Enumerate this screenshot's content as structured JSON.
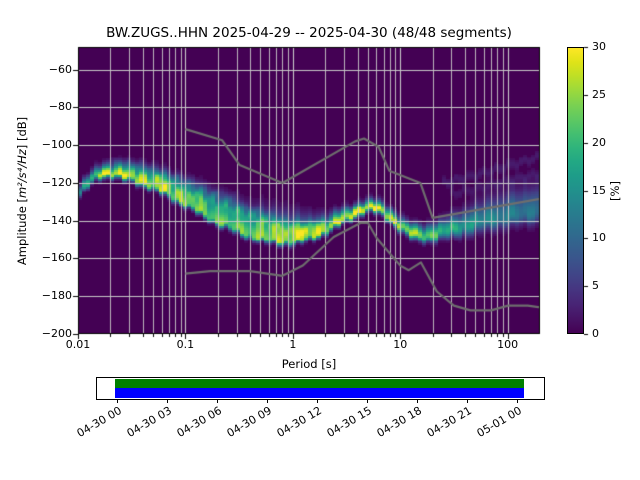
{
  "title": "BW.ZUGS..HHN   2025-04-29 -- 2025-04-30  (48/48 segments)",
  "chart_data": [
    {
      "type": "heatmap",
      "title": "BW.ZUGS..HHN   2025-04-29 -- 2025-04-30  (48/48 segments)",
      "xlabel": "Period [s]",
      "ylabel": {
        "prefix": "Amplitude [",
        "math": "m²/s⁴/Hz",
        "suffix": "] [dB]"
      },
      "xscale": "log",
      "xlim": [
        0.01,
        200
      ],
      "ylim": [
        -200,
        -48
      ],
      "xticks": [
        0.01,
        0.1,
        1,
        10,
        100
      ],
      "xtick_labels": [
        "0.01",
        "0.1",
        "1",
        "10",
        "100"
      ],
      "yticks": [
        -60,
        -80,
        -100,
        -120,
        -140,
        -160,
        -180,
        -200
      ],
      "ytick_labels": [
        "−60",
        "−80",
        "−100",
        "−120",
        "−140",
        "−160",
        "−180",
        "−200"
      ],
      "grid": true,
      "background_color": "#440154",
      "grid_color": "#c9c9c9",
      "noise_model_color": "#6e6e6e",
      "colorbar": {
        "label": "[%]",
        "range": [
          0,
          30
        ],
        "ticks": [
          0,
          5,
          10,
          15,
          20,
          25,
          30
        ],
        "tick_labels": [
          "0",
          "5",
          "10",
          "15",
          "20",
          "25",
          "30"
        ]
      },
      "mode_curve": [
        [
          0.01,
          -126.5
        ],
        [
          0.0112,
          -123.0
        ],
        [
          0.0126,
          -120.0
        ],
        [
          0.0141,
          -117.2
        ],
        [
          0.0158,
          -115.5
        ],
        [
          0.0178,
          -114.8
        ],
        [
          0.02,
          -114.8
        ],
        [
          0.0224,
          -115.2
        ],
        [
          0.0282,
          -116.5
        ],
        [
          0.0355,
          -118.2
        ],
        [
          0.0447,
          -120.3
        ],
        [
          0.0562,
          -122.8
        ],
        [
          0.0708,
          -125.8
        ],
        [
          0.0891,
          -128.8
        ],
        [
          0.1122,
          -132.0
        ],
        [
          0.1413,
          -135.3
        ],
        [
          0.1778,
          -138.4
        ],
        [
          0.2239,
          -141.4
        ],
        [
          0.2818,
          -144.0
        ],
        [
          0.3548,
          -146.3
        ],
        [
          0.4467,
          -148.1
        ],
        [
          0.5623,
          -149.4
        ],
        [
          0.7079,
          -150.3
        ],
        [
          0.8913,
          -150.6
        ],
        [
          1.122,
          -150.0
        ],
        [
          1.413,
          -148.5
        ],
        [
          1.778,
          -146.2
        ],
        [
          2.239,
          -143.3
        ],
        [
          2.818,
          -140.0
        ],
        [
          3.548,
          -136.8
        ],
        [
          4.467,
          -134.0
        ],
        [
          5.623,
          -133.0
        ],
        [
          7.079,
          -135.5
        ],
        [
          8.913,
          -140.5
        ],
        [
          11.22,
          -145.0
        ],
        [
          14.13,
          -147.8
        ],
        [
          17.78,
          -148.0
        ],
        [
          22.39,
          -146.8
        ],
        [
          28.18,
          -145.2
        ],
        [
          35.48,
          -143.8
        ],
        [
          44.67,
          -142.3
        ],
        [
          56.23,
          -140.9
        ],
        [
          70.79,
          -139.6
        ],
        [
          89.13,
          -138.4
        ],
        [
          112.2,
          -137.2
        ],
        [
          141.3,
          -136.2
        ],
        [
          177.8,
          -135.3
        ],
        [
          200.0,
          -134.8
        ]
      ],
      "mode_amplitude_pct": [
        [
          0.01,
          13
        ],
        [
          0.014,
          22
        ],
        [
          0.018,
          30
        ],
        [
          0.028,
          28
        ],
        [
          0.045,
          26
        ],
        [
          0.07,
          25
        ],
        [
          0.11,
          24
        ],
        [
          0.18,
          23
        ],
        [
          0.28,
          23
        ],
        [
          0.45,
          24
        ],
        [
          0.7,
          26
        ],
        [
          1.1,
          25
        ],
        [
          1.8,
          26
        ],
        [
          2.8,
          28
        ],
        [
          4.5,
          30
        ],
        [
          5.6,
          30
        ],
        [
          7.1,
          28
        ],
        [
          9,
          27
        ],
        [
          11,
          26
        ],
        [
          14,
          25
        ],
        [
          18,
          23
        ],
        [
          28,
          19
        ],
        [
          45,
          16
        ],
        [
          70,
          14
        ],
        [
          110,
          12.5
        ],
        [
          200,
          11
        ]
      ],
      "sigma_low": [
        [
          0.01,
          1.6
        ],
        [
          8,
          1.6
        ],
        [
          20,
          2.2
        ],
        [
          50,
          3.2
        ],
        [
          200,
          4.2
        ]
      ],
      "sigma_high": [
        [
          0.01,
          2.5
        ],
        [
          0.02,
          3.0
        ],
        [
          0.04,
          4.5
        ],
        [
          0.07,
          5.5
        ],
        [
          0.12,
          6.5
        ],
        [
          0.25,
          7.5
        ],
        [
          0.5,
          8.0
        ],
        [
          0.9,
          8.0
        ],
        [
          1.4,
          6.0
        ],
        [
          2.2,
          4.0
        ],
        [
          3.5,
          2.8
        ],
        [
          5.6,
          2.5
        ],
        [
          8,
          3.0
        ],
        [
          14,
          3.2
        ],
        [
          25,
          4.0
        ],
        [
          50,
          6.0
        ],
        [
          100,
          7.5
        ],
        [
          200,
          8.5
        ]
      ],
      "branches": [
        {
          "amp": 4.0,
          "points": [
            [
              0.03,
              -112.5
            ],
            [
              0.06,
              -116.5
            ],
            [
              0.1,
              -121.0
            ],
            [
              0.2,
              -128.0
            ],
            [
              0.4,
              -135.0
            ],
            [
              0.8,
              -141.0
            ],
            [
              1.3,
              -144.0
            ],
            [
              2.0,
              -141.5
            ]
          ]
        },
        {
          "amp": 5.5,
          "points": [
            [
              0.05,
              -117.0
            ],
            [
              0.1,
              -125.0
            ],
            [
              0.25,
              -133.5
            ],
            [
              0.5,
              -140.0
            ],
            [
              0.9,
              -145.5
            ],
            [
              1.4,
              -146.5
            ]
          ]
        },
        {
          "amp": 2.4,
          "points": [
            [
              0.02,
              -109.5
            ],
            [
              0.04,
              -111.5
            ],
            [
              0.08,
              -116.5
            ],
            [
              0.15,
              -122.5
            ],
            [
              0.3,
              -129.5
            ]
          ]
        },
        {
          "amp": 2.2,
          "points": [
            [
              25,
              -120.0
            ],
            [
              50,
              -116.0
            ],
            [
              100,
              -111.0
            ],
            [
              200,
              -106.0
            ]
          ]
        },
        {
          "amp": 1.8,
          "points": [
            [
              30,
              -126.0
            ],
            [
              70,
              -121.0
            ],
            [
              200,
              -115.0
            ]
          ]
        }
      ],
      "noise_models": {
        "nhnm": [
          [
            0.1,
            -91.5
          ],
          [
            0.22,
            -97.4
          ],
          [
            0.32,
            -110.5
          ],
          [
            0.8,
            -120.0
          ],
          [
            3.8,
            -98.0
          ],
          [
            4.6,
            -96.5
          ],
          [
            6.3,
            -101.0
          ],
          [
            7.9,
            -113.5
          ],
          [
            15.4,
            -120.0
          ],
          [
            20.0,
            -138.5
          ],
          [
            354.8,
            -126.0
          ]
        ],
        "nlnm": [
          [
            0.1,
            -168.0
          ],
          [
            0.17,
            -166.7
          ],
          [
            0.4,
            -166.7
          ],
          [
            0.8,
            -169.2
          ],
          [
            1.24,
            -163.7
          ],
          [
            2.4,
            -148.6
          ],
          [
            4.3,
            -141.1
          ],
          [
            5.0,
            -141.1
          ],
          [
            6.0,
            -149.0
          ],
          [
            10.0,
            -163.8
          ],
          [
            12.0,
            -166.2
          ],
          [
            15.6,
            -162.1
          ],
          [
            21.9,
            -177.5
          ],
          [
            31.6,
            -185.0
          ],
          [
            45.0,
            -187.5
          ],
          [
            70.0,
            -187.5
          ],
          [
            101.0,
            -185.0
          ],
          [
            154.0,
            -185.0
          ],
          [
            328.0,
            -187.5
          ]
        ]
      },
      "viridis_stops": [
        [
          0.0,
          "#440154"
        ],
        [
          0.05,
          "#471365"
        ],
        [
          0.1,
          "#482475"
        ],
        [
          0.15,
          "#463480"
        ],
        [
          0.2,
          "#414487"
        ],
        [
          0.25,
          "#3b528b"
        ],
        [
          0.3,
          "#355f8d"
        ],
        [
          0.35,
          "#2f6c8e"
        ],
        [
          0.4,
          "#2a788e"
        ],
        [
          0.45,
          "#25848e"
        ],
        [
          0.5,
          "#21918c"
        ],
        [
          0.55,
          "#1e9c89"
        ],
        [
          0.6,
          "#22a884"
        ],
        [
          0.65,
          "#2fb47c"
        ],
        [
          0.7,
          "#44bf70"
        ],
        [
          0.75,
          "#5ec962"
        ],
        [
          0.8,
          "#7ad151"
        ],
        [
          0.85,
          "#9bd93c"
        ],
        [
          0.9,
          "#bddf26"
        ],
        [
          0.95,
          "#dfe318"
        ],
        [
          1.0,
          "#fde725"
        ]
      ]
    },
    {
      "type": "timeline",
      "tick_labels": [
        "04-30 00",
        "04-30 03",
        "04-30 06",
        "04-30 09",
        "04-30 12",
        "04-30 15",
        "04-30 18",
        "04-30 21",
        "05-01 00"
      ],
      "coverage": {
        "availability_color": "#008000",
        "used_color": "#0000ff",
        "start_frac": 0.0403,
        "end_frac": 0.9553
      }
    }
  ]
}
